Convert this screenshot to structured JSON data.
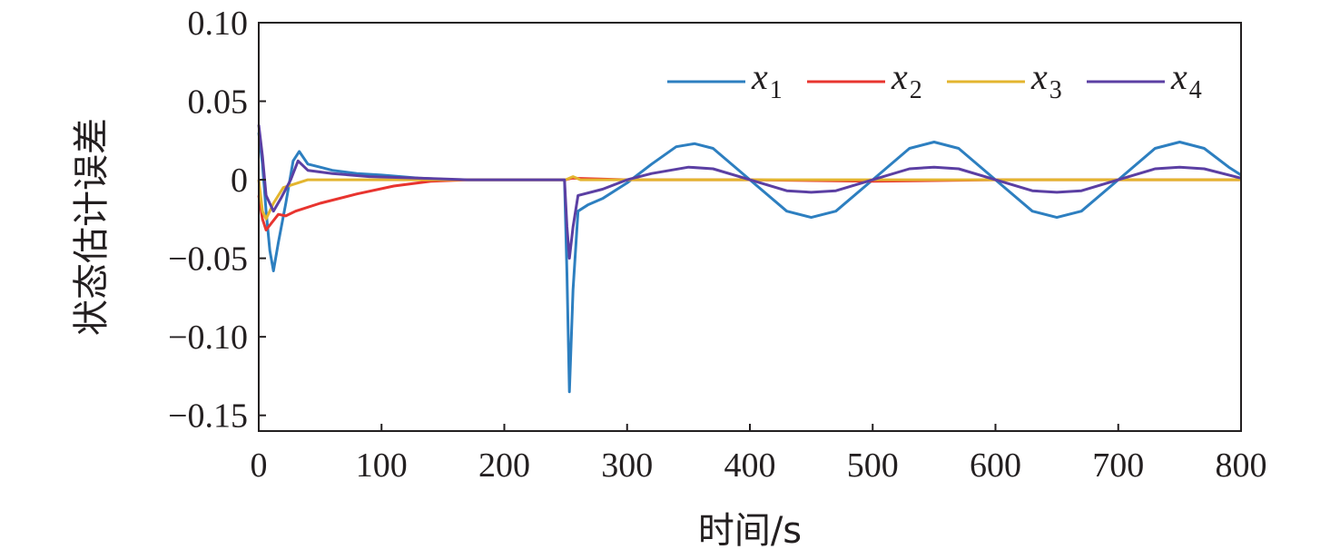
{
  "chart_data": {
    "type": "line",
    "title": "",
    "xlabel": "时间/s",
    "ylabel": "状态估计误差",
    "xlim": [
      0,
      800
    ],
    "ylim": [
      -0.16,
      0.1
    ],
    "xticks": [
      "0",
      "100",
      "200",
      "300",
      "400",
      "500",
      "600",
      "700",
      "800"
    ],
    "yticks": [
      "0.10",
      "0.05",
      "0",
      "−0.05",
      "−0.10",
      "−0.15"
    ],
    "grid": false,
    "legend_position": "top-right",
    "series": [
      {
        "name": "x",
        "subscript": "1",
        "color": "#2d7fc0",
        "points": [
          [
            0,
            0.03
          ],
          [
            3,
            0.01
          ],
          [
            6,
            -0.02
          ],
          [
            9,
            -0.045
          ],
          [
            12,
            -0.058
          ],
          [
            16,
            -0.04
          ],
          [
            22,
            -0.015
          ],
          [
            28,
            0.012
          ],
          [
            33,
            0.018
          ],
          [
            40,
            0.01
          ],
          [
            50,
            0.008
          ],
          [
            60,
            0.006
          ],
          [
            80,
            0.004
          ],
          [
            100,
            0.003
          ],
          [
            130,
            0.001
          ],
          [
            160,
            0.0
          ],
          [
            200,
            0.0
          ],
          [
            249,
            0.0
          ],
          [
            251,
            -0.06
          ],
          [
            253,
            -0.135
          ],
          [
            256,
            -0.07
          ],
          [
            260,
            -0.02
          ],
          [
            268,
            -0.016
          ],
          [
            280,
            -0.012
          ],
          [
            300,
            -0.002
          ],
          [
            320,
            0.01
          ],
          [
            340,
            0.021
          ],
          [
            355,
            0.023
          ],
          [
            370,
            0.02
          ],
          [
            400,
            0.0
          ],
          [
            430,
            -0.02
          ],
          [
            450,
            -0.024
          ],
          [
            470,
            -0.02
          ],
          [
            500,
            0.0
          ],
          [
            530,
            0.02
          ],
          [
            550,
            0.024
          ],
          [
            570,
            0.02
          ],
          [
            600,
            0.0
          ],
          [
            630,
            -0.02
          ],
          [
            650,
            -0.024
          ],
          [
            670,
            -0.02
          ],
          [
            700,
            0.0
          ],
          [
            730,
            0.02
          ],
          [
            750,
            0.024
          ],
          [
            770,
            0.02
          ],
          [
            790,
            0.008
          ],
          [
            800,
            0.003
          ]
        ]
      },
      {
        "name": "x",
        "subscript": "2",
        "color": "#e8342f",
        "points": [
          [
            0,
            -0.01
          ],
          [
            3,
            -0.025
          ],
          [
            6,
            -0.032
          ],
          [
            10,
            -0.028
          ],
          [
            16,
            -0.022
          ],
          [
            22,
            -0.023
          ],
          [
            30,
            -0.02
          ],
          [
            50,
            -0.015
          ],
          [
            80,
            -0.009
          ],
          [
            110,
            -0.004
          ],
          [
            140,
            -0.001
          ],
          [
            170,
            0.0
          ],
          [
            250,
            0.0
          ],
          [
            255,
            0.001
          ],
          [
            300,
            0.0
          ],
          [
            400,
            0.0
          ],
          [
            500,
            -0.001
          ],
          [
            600,
            0.0
          ],
          [
            700,
            0.0
          ],
          [
            800,
            0.0
          ]
        ]
      },
      {
        "name": "x",
        "subscript": "3",
        "color": "#e3b52f",
        "points": [
          [
            0,
            0.0
          ],
          [
            3,
            -0.02
          ],
          [
            6,
            -0.025
          ],
          [
            12,
            -0.015
          ],
          [
            20,
            -0.005
          ],
          [
            40,
            0.0
          ],
          [
            250,
            0.0
          ],
          [
            256,
            0.002
          ],
          [
            262,
            0.0
          ],
          [
            800,
            0.0
          ]
        ]
      },
      {
        "name": "x",
        "subscript": "4",
        "color": "#5b3fa3",
        "points": [
          [
            0,
            0.035
          ],
          [
            3,
            0.015
          ],
          [
            6,
            -0.01
          ],
          [
            12,
            -0.02
          ],
          [
            18,
            -0.012
          ],
          [
            26,
            0.0
          ],
          [
            32,
            0.012
          ],
          [
            40,
            0.006
          ],
          [
            60,
            0.004
          ],
          [
            90,
            0.002
          ],
          [
            130,
            0.001
          ],
          [
            170,
            0.0
          ],
          [
            249,
            0.0
          ],
          [
            251,
            -0.03
          ],
          [
            253,
            -0.05
          ],
          [
            256,
            -0.03
          ],
          [
            260,
            -0.01
          ],
          [
            280,
            -0.006
          ],
          [
            300,
            0.0
          ],
          [
            320,
            0.004
          ],
          [
            350,
            0.008
          ],
          [
            370,
            0.007
          ],
          [
            400,
            0.0
          ],
          [
            430,
            -0.007
          ],
          [
            450,
            -0.008
          ],
          [
            470,
            -0.007
          ],
          [
            500,
            0.0
          ],
          [
            530,
            0.007
          ],
          [
            550,
            0.008
          ],
          [
            570,
            0.007
          ],
          [
            600,
            0.0
          ],
          [
            630,
            -0.007
          ],
          [
            650,
            -0.008
          ],
          [
            670,
            -0.007
          ],
          [
            700,
            0.0
          ],
          [
            730,
            0.007
          ],
          [
            750,
            0.008
          ],
          [
            770,
            0.007
          ],
          [
            800,
            0.001
          ]
        ]
      }
    ]
  }
}
